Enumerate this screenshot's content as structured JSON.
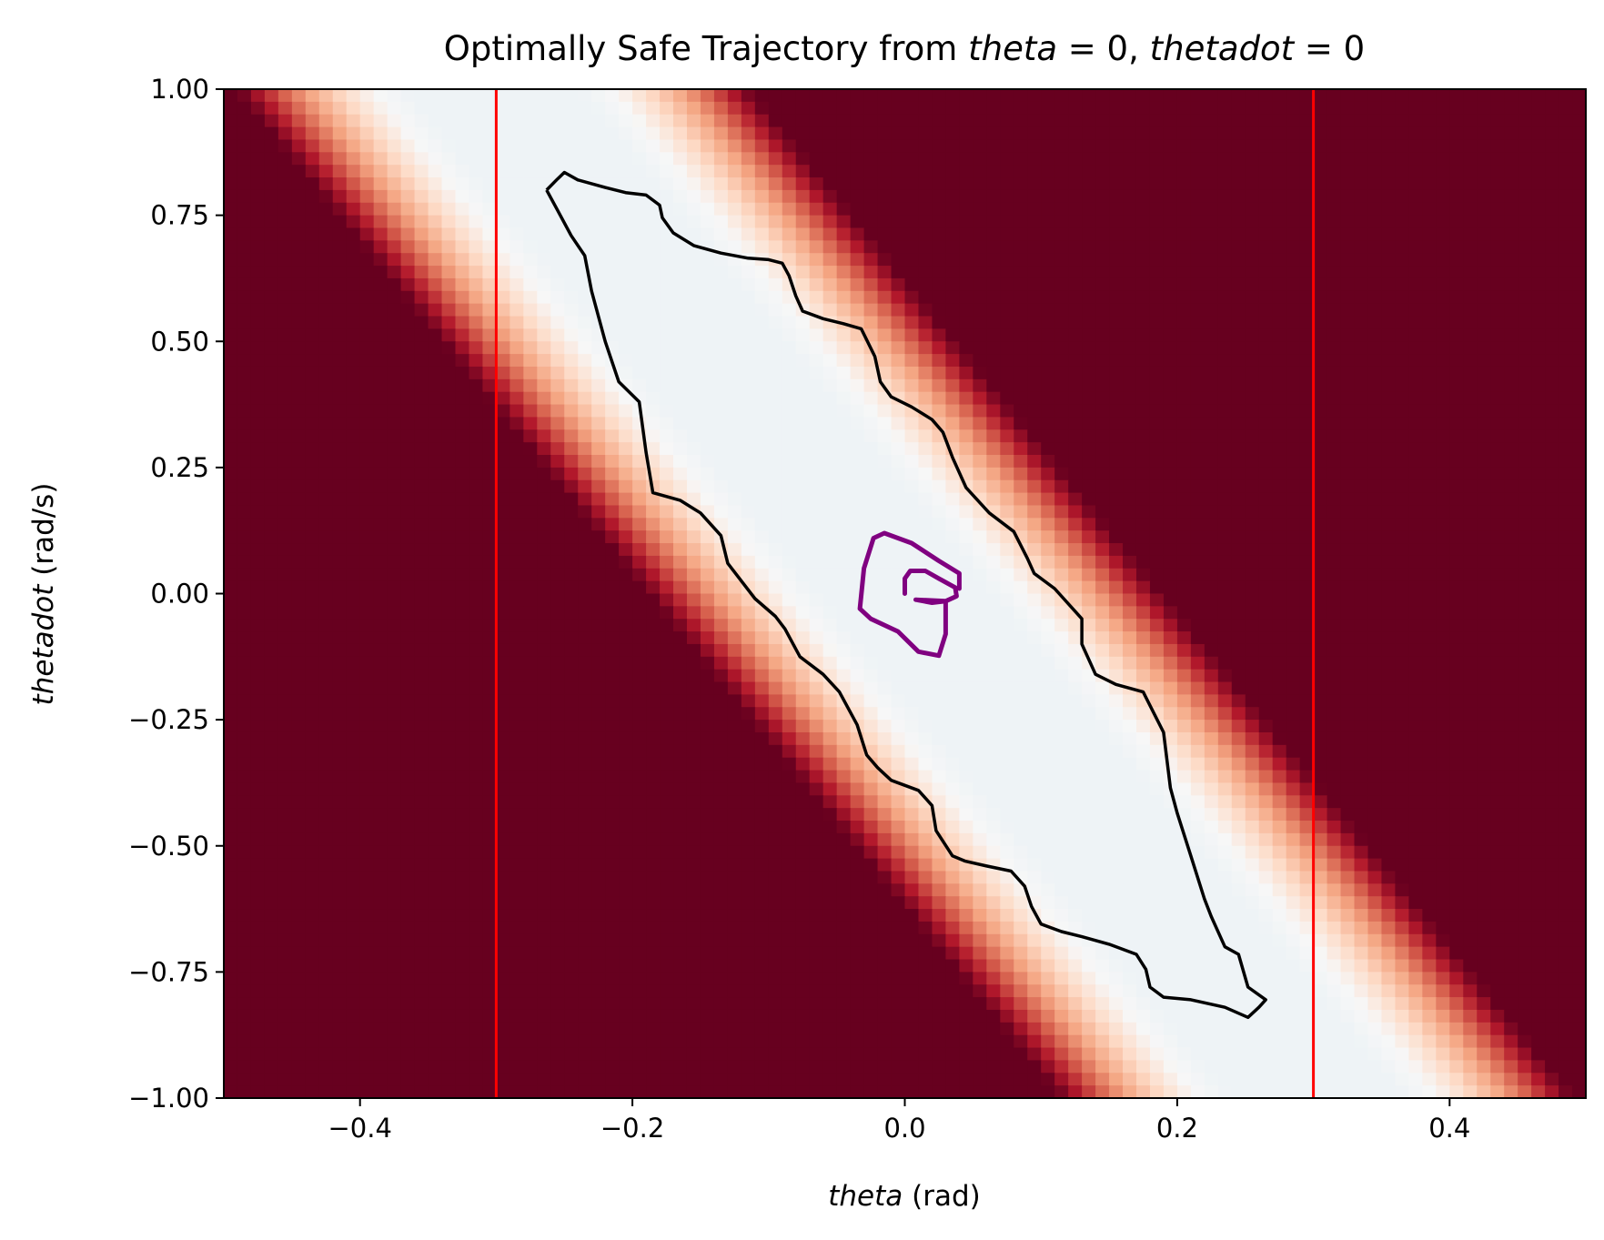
{
  "chart_data": {
    "type": "heatmap",
    "title": {
      "prefix": "Optimally Safe Trajectory from ",
      "var1": "theta",
      "eq1": " = 0, ",
      "var2": "thetadot",
      "eq2": " = 0"
    },
    "xlabel": {
      "var": "theta",
      "unit": " (rad)"
    },
    "ylabel": {
      "var": "thetadot",
      "unit": " (rad/s)"
    },
    "xlim": [
      -0.5,
      0.5
    ],
    "ylim": [
      -1.0,
      1.0
    ],
    "x_ticks": [
      -0.4,
      -0.2,
      0.0,
      0.2,
      0.4
    ],
    "x_tick_labels": [
      "−0.4",
      "−0.2",
      "0.0",
      "0.2",
      "0.4"
    ],
    "y_ticks": [
      1.0,
      0.75,
      0.5,
      0.25,
      0.0,
      -0.25,
      -0.5,
      -0.75,
      -1.0
    ],
    "y_tick_labels": [
      "1.00",
      "0.75",
      "0.50",
      "0.25",
      "0.00",
      "−0.25",
      "−0.50",
      "−0.75",
      "−1.00"
    ],
    "colormap": "RdBu",
    "colors": {
      "unsafe": "#67001f",
      "safe": "#eef3f6",
      "constraint_line": "#ff0000",
      "boundary_contour": "#000000",
      "trajectory": "#800080"
    },
    "heatmap": {
      "grid_nx": 100,
      "grid_ny": 80,
      "band_slope": -3.3,
      "band_center_intercept": 0.0,
      "safe_halfwidth_diag": 0.06,
      "fade_width_diag": 0.12
    },
    "constraint_lines_x": [
      -0.3,
      0.3
    ],
    "safe_set_boundary": [
      [
        -0.263,
        0.8
      ],
      [
        -0.255,
        0.822
      ],
      [
        -0.25,
        0.835
      ],
      [
        -0.24,
        0.82
      ],
      [
        -0.22,
        0.805
      ],
      [
        -0.205,
        0.795
      ],
      [
        -0.19,
        0.79
      ],
      [
        -0.18,
        0.77
      ],
      [
        -0.178,
        0.745
      ],
      [
        -0.17,
        0.715
      ],
      [
        -0.155,
        0.69
      ],
      [
        -0.135,
        0.675
      ],
      [
        -0.115,
        0.665
      ],
      [
        -0.1,
        0.662
      ],
      [
        -0.09,
        0.655
      ],
      [
        -0.085,
        0.63
      ],
      [
        -0.08,
        0.59
      ],
      [
        -0.075,
        0.56
      ],
      [
        -0.06,
        0.545
      ],
      [
        -0.045,
        0.535
      ],
      [
        -0.032,
        0.525
      ],
      [
        -0.022,
        0.47
      ],
      [
        -0.018,
        0.42
      ],
      [
        -0.01,
        0.39
      ],
      [
        0.005,
        0.37
      ],
      [
        0.02,
        0.345
      ],
      [
        0.028,
        0.32
      ],
      [
        0.035,
        0.27
      ],
      [
        0.045,
        0.21
      ],
      [
        0.062,
        0.16
      ],
      [
        0.08,
        0.123
      ],
      [
        0.09,
        0.07
      ],
      [
        0.095,
        0.04
      ],
      [
        0.11,
        0.01
      ],
      [
        0.13,
        -0.05
      ],
      [
        0.13,
        -0.1
      ],
      [
        0.14,
        -0.16
      ],
      [
        0.155,
        -0.18
      ],
      [
        0.175,
        -0.195
      ],
      [
        0.19,
        -0.275
      ],
      [
        0.195,
        -0.385
      ],
      [
        0.2,
        -0.435
      ],
      [
        0.21,
        -0.52
      ],
      [
        0.22,
        -0.605
      ],
      [
        0.225,
        -0.64
      ],
      [
        0.235,
        -0.7
      ],
      [
        0.245,
        -0.715
      ],
      [
        0.252,
        -0.78
      ],
      [
        0.265,
        -0.805
      ],
      [
        0.26,
        -0.82
      ],
      [
        0.252,
        -0.84
      ],
      [
        0.235,
        -0.82
      ],
      [
        0.21,
        -0.805
      ],
      [
        0.19,
        -0.8
      ],
      [
        0.18,
        -0.78
      ],
      [
        0.177,
        -0.745
      ],
      [
        0.17,
        -0.715
      ],
      [
        0.15,
        -0.695
      ],
      [
        0.13,
        -0.68
      ],
      [
        0.115,
        -0.67
      ],
      [
        0.1,
        -0.655
      ],
      [
        0.093,
        -0.62
      ],
      [
        0.088,
        -0.58
      ],
      [
        0.078,
        -0.55
      ],
      [
        0.06,
        -0.54
      ],
      [
        0.044,
        -0.53
      ],
      [
        0.035,
        -0.52
      ],
      [
        0.023,
        -0.47
      ],
      [
        0.02,
        -0.42
      ],
      [
        0.01,
        -0.39
      ],
      [
        -0.01,
        -0.37
      ],
      [
        -0.02,
        -0.345
      ],
      [
        -0.028,
        -0.32
      ],
      [
        -0.035,
        -0.26
      ],
      [
        -0.048,
        -0.195
      ],
      [
        -0.06,
        -0.16
      ],
      [
        -0.077,
        -0.125
      ],
      [
        -0.088,
        -0.07
      ],
      [
        -0.095,
        -0.045
      ],
      [
        -0.11,
        -0.01
      ],
      [
        -0.13,
        0.06
      ],
      [
        -0.135,
        0.115
      ],
      [
        -0.15,
        0.16
      ],
      [
        -0.165,
        0.185
      ],
      [
        -0.185,
        0.2
      ],
      [
        -0.19,
        0.28
      ],
      [
        -0.195,
        0.38
      ],
      [
        -0.21,
        0.42
      ],
      [
        -0.22,
        0.5
      ],
      [
        -0.23,
        0.6
      ],
      [
        -0.235,
        0.67
      ],
      [
        -0.245,
        0.71
      ],
      [
        -0.255,
        0.76
      ],
      [
        -0.263,
        0.8
      ]
    ],
    "trajectory": [
      [
        0.0,
        0.0
      ],
      [
        0.0,
        0.03
      ],
      [
        0.004,
        0.045
      ],
      [
        0.015,
        0.045
      ],
      [
        0.025,
        0.03
      ],
      [
        0.037,
        0.012
      ],
      [
        0.038,
        -0.005
      ],
      [
        0.03,
        -0.015
      ],
      [
        0.02,
        -0.018
      ],
      [
        0.008,
        -0.012
      ],
      [
        0.03,
        -0.015
      ],
      [
        0.03,
        -0.08
      ],
      [
        0.025,
        -0.123
      ],
      [
        0.01,
        -0.115
      ],
      [
        -0.005,
        -0.075
      ],
      [
        -0.025,
        -0.05
      ],
      [
        -0.033,
        -0.03
      ],
      [
        -0.03,
        0.05
      ],
      [
        -0.023,
        0.11
      ],
      [
        -0.015,
        0.12
      ],
      [
        0.005,
        0.1
      ],
      [
        0.025,
        0.065
      ],
      [
        0.04,
        0.04
      ],
      [
        0.04,
        0.01
      ]
    ]
  }
}
